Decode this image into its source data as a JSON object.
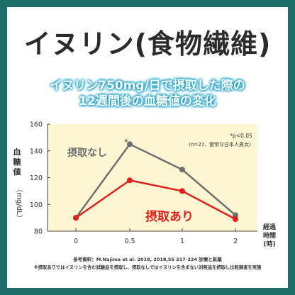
{
  "title": "イヌリン(食物繊維)",
  "subtitle_line1": "イヌリン750mg/日で摂取した際の",
  "subtitle_line2": "12週間後の血糖値の変化",
  "colors": {
    "frame": "#1e6e6b",
    "chart_bg": "#fdf6d3",
    "no_intake": "#6e6e6e",
    "intake": "#e0201b",
    "subtitle_glow": "#1da1c8"
  },
  "chart_data": {
    "type": "line",
    "x": [
      0,
      0.5,
      1,
      2
    ],
    "x_tick_labels": [
      "0",
      "0.5",
      "1",
      "2"
    ],
    "ylabel": "血糖値（mg/dL）",
    "xlabel": "経過時間(時)",
    "y_ticks": [
      80,
      100,
      120,
      140,
      160
    ],
    "ylim": [
      80,
      160
    ],
    "grid": false,
    "series": [
      {
        "name": "摂取なし",
        "values": [
          90,
          145,
          126,
          92
        ]
      },
      {
        "name": "摂取あり",
        "values": [
          90,
          118,
          110,
          89
        ]
      }
    ],
    "annotations": {
      "significance_mark": "*",
      "significance_note": "*p<0.05",
      "sample_note": "(n=27、健常な日本人男女)"
    }
  },
  "footer": {
    "source": "参考資料：M.Najima et al. 2018, 2018,55 217-224 診療と新薬",
    "note": "※摂取ありではイヌリンを含む試験品を摂取し、摂取なしではイヌリンを含まない対照品を摂取し比較調査を実施"
  }
}
